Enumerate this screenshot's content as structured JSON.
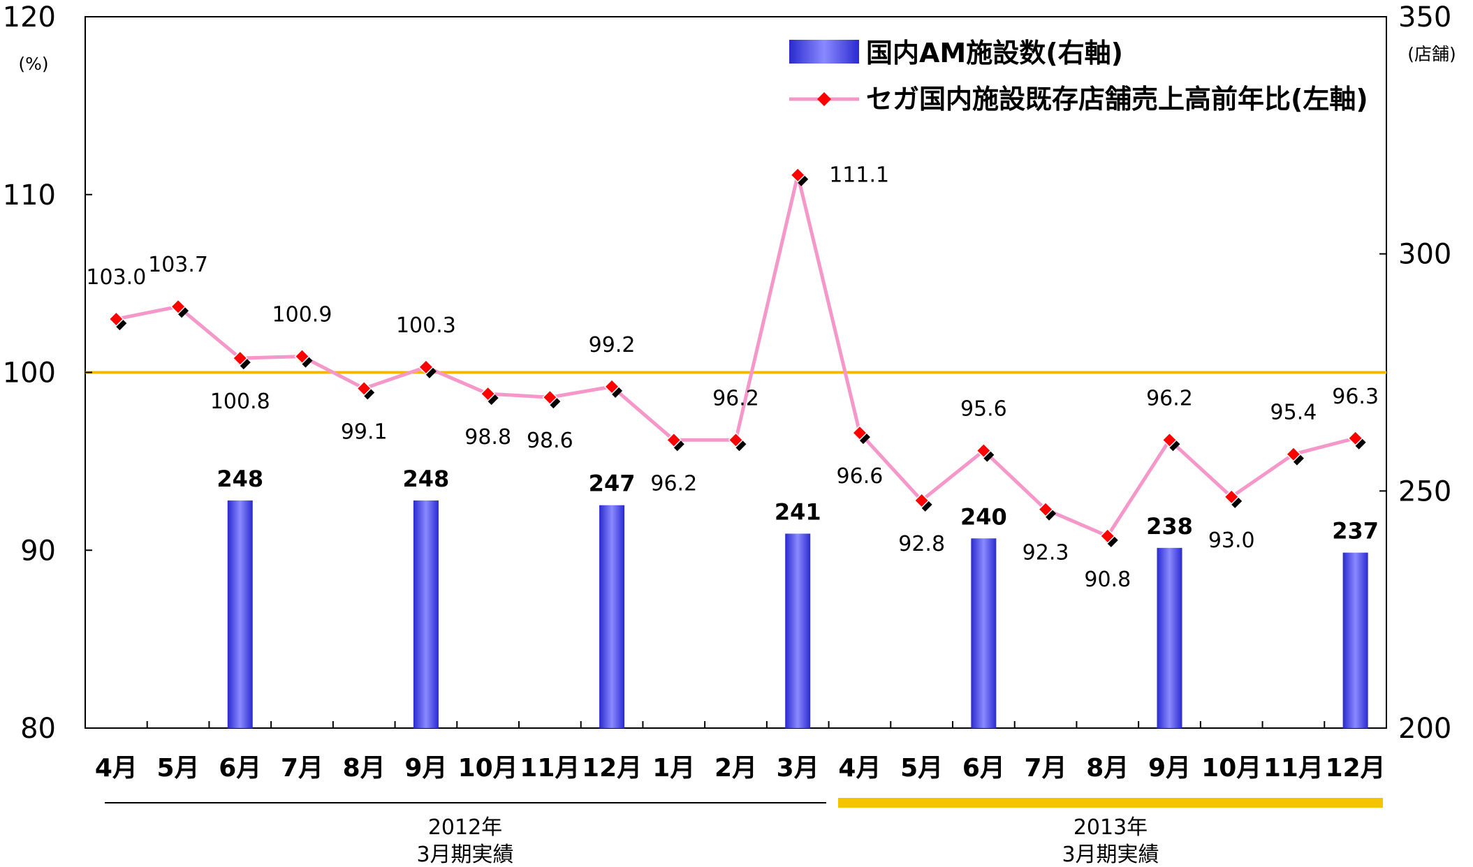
{
  "chart_data": {
    "type": "bar+line",
    "categories": [
      "4月",
      "5月",
      "6月",
      "7月",
      "8月",
      "9月",
      "10月",
      "11月",
      "12月",
      "1月",
      "2月",
      "3月",
      "4月",
      "5月",
      "6月",
      "7月",
      "8月",
      "9月",
      "10月",
      "11月",
      "12月"
    ],
    "series": [
      {
        "name": "国内AM施設数(右軸)",
        "type": "bar",
        "axis": "right",
        "color": "#4a4ae0",
        "values": [
          null,
          null,
          248,
          null,
          null,
          248,
          null,
          null,
          247,
          null,
          null,
          241,
          null,
          null,
          240,
          null,
          null,
          238,
          null,
          null,
          237
        ],
        "labels": [
          "",
          "",
          "248",
          "",
          "",
          "248",
          "",
          "",
          "247",
          "",
          "",
          "241",
          "",
          "",
          "240",
          "",
          "",
          "238",
          "",
          "",
          "237"
        ]
      },
      {
        "name": "セガ国内施設既存店舗売上高前年比(左軸)",
        "type": "line",
        "axis": "left",
        "color": "#f597c8",
        "marker_color": "#ff0000",
        "values": [
          103.0,
          103.7,
          100.8,
          100.9,
          99.1,
          100.3,
          98.8,
          98.6,
          99.2,
          96.2,
          96.2,
          111.1,
          96.6,
          92.8,
          95.6,
          92.3,
          90.8,
          96.2,
          93.0,
          95.4,
          96.3
        ],
        "labels": [
          "103.0",
          "103.7",
          "100.8",
          "100.9",
          "99.1",
          "100.3",
          "98.8",
          "98.6",
          "99.2",
          "96.2",
          "96.2",
          "111.1",
          "96.6",
          "92.8",
          "95.6",
          "92.3",
          "90.8",
          "96.2",
          "93.0",
          "95.4",
          "96.3"
        ]
      }
    ],
    "left_axis": {
      "min": 80,
      "max": 120,
      "ticks": [
        "80",
        "90",
        "100",
        "110",
        "120"
      ],
      "unit": "(%)"
    },
    "right_axis": {
      "min": 200,
      "max": 350,
      "ticks": [
        "200",
        "250",
        "300",
        "350"
      ],
      "unit": "(店舗)"
    },
    "reference_line": {
      "value": 100,
      "color": "#f5b800"
    },
    "periods": [
      {
        "label_line1": "2012年",
        "label_line2": "3月期実績",
        "color": "#000000"
      },
      {
        "label_line1": "2013年",
        "label_line2": "3月期実績",
        "color": "#f5c400"
      }
    ],
    "legend": {
      "position": "top-right",
      "items": [
        {
          "label": "国内AM施設数(右軸)",
          "kind": "bar"
        },
        {
          "label": "セガ国内施設既存店舗売上高前年比(左軸)",
          "kind": "line"
        }
      ]
    }
  }
}
